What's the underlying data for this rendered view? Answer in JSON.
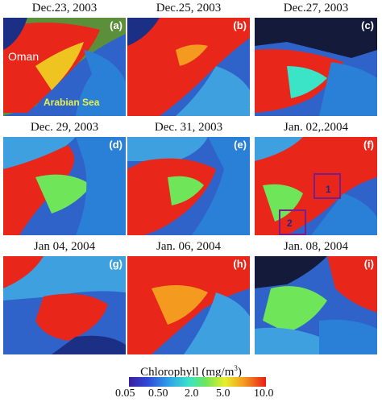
{
  "panels": [
    {
      "title": "Dec.23, 2003",
      "letter": "(a)"
    },
    {
      "title": "Dec.25, 2003",
      "letter": "(b)"
    },
    {
      "title": "Dec.27, 2003",
      "letter": "(c)"
    },
    {
      "title": "Dec. 29, 2003",
      "letter": "(d)"
    },
    {
      "title": "Dec. 31, 2003",
      "letter": "(e)"
    },
    {
      "title": "Jan. 02,.2004",
      "letter": "(f)"
    },
    {
      "title": "Jan 04, 2004",
      "letter": "(g)"
    },
    {
      "title": "Jan. 06, 2004",
      "letter": "(h)"
    },
    {
      "title": "Jan. 08, 2004",
      "letter": "(i)"
    }
  ],
  "map_labels": {
    "oman": "Oman",
    "sea": "Arabian Sea",
    "box1": "1",
    "box2": "2"
  },
  "colorbar": {
    "title": "Chlorophyll (mg/m",
    "title_sup": "3",
    "title_end": ")",
    "ticks": [
      "0.05",
      "0.50",
      "2.0",
      "5.0",
      "10.0"
    ],
    "colors": [
      "#3a1fa0",
      "#2f49d8",
      "#2fa7e6",
      "#3be3c7",
      "#6fe55a",
      "#e7ef2b",
      "#f39a1f",
      "#e81e16"
    ]
  }
}
